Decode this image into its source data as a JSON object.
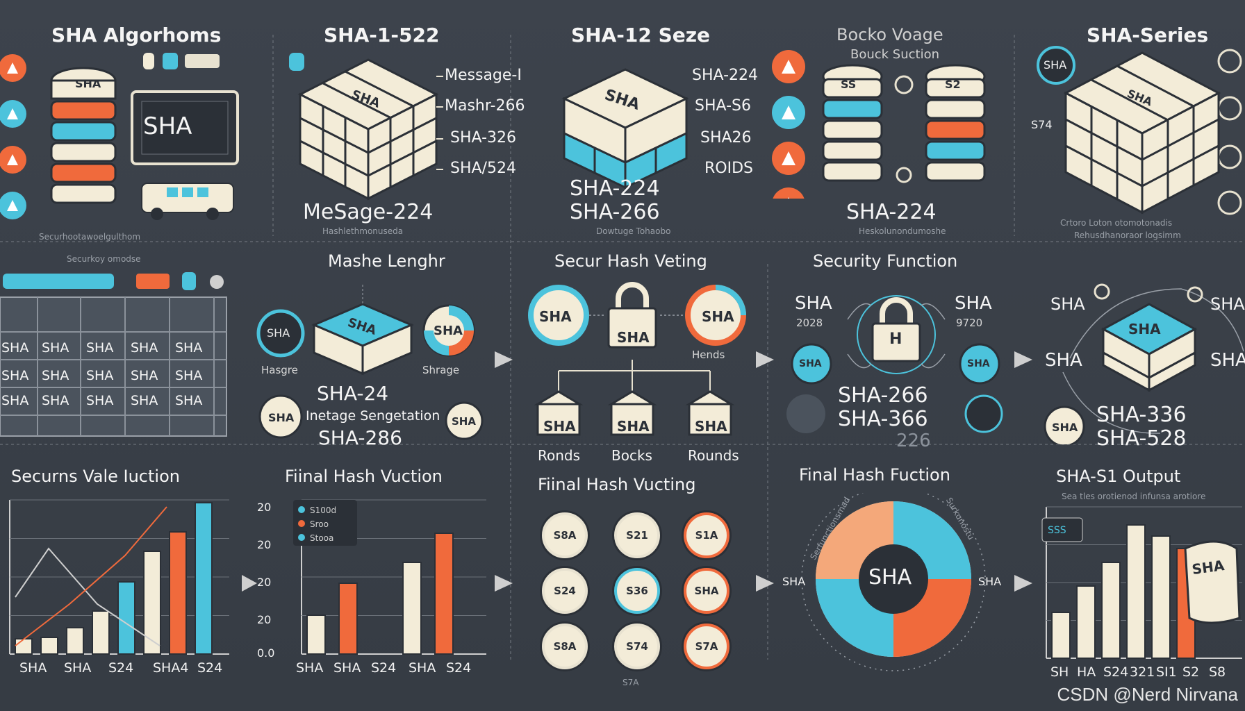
{
  "colors": {
    "bg": "#3a4049",
    "cream": "#f3ecd8",
    "teal": "#4cc3dc",
    "orange": "#f06a3c",
    "dark": "#2b3037"
  },
  "row1": {
    "p1": {
      "title": "SHA Algorhoms",
      "screen": "SHA",
      "cube": "SHA",
      "caption": "Securhootawoelgulthom"
    },
    "p2": {
      "title": "SHA-1-522",
      "labels": [
        "Message-I",
        "Mashr-266",
        "SHA-326",
        "SHA/524"
      ],
      "cube": "SHA",
      "bottom": "MeSage-224",
      "caption": "Hashlethmonuseda"
    },
    "p3": {
      "title": "SHA-12 Seze",
      "labels": [
        "SHA-224",
        "SHA-S6",
        "SHA26",
        "ROIDS"
      ],
      "cube": "SHA",
      "bottom1": "SHA-224",
      "bottom2": "SHA-266",
      "caption": "Dowtuge Tohaobo"
    },
    "p4": {
      "title": "Bocko Voage",
      "subtitle": "Bouck Suction",
      "stackLeft": "SS",
      "stackRight": "S2",
      "bottom": "SHA-224",
      "caption": "Heskolunondumoshe"
    },
    "p5": {
      "title": "SHA-Series",
      "badge": "SHA",
      "side": "S74",
      "cube": "SHA",
      "caption1": "Crtoro Loton otomotonadis",
      "caption2": "Rehusdhanoraor logsimm"
    }
  },
  "row2": {
    "p1": {
      "caption": "Securkoy omodse",
      "cells": [
        "SHA",
        "SHA",
        "SHA",
        "SHA",
        "SHA",
        "SHA",
        "SHA",
        "SHA",
        "SHA",
        "SHA",
        "SHA",
        "SHA",
        "SHA",
        "SHA",
        "SHA"
      ]
    },
    "p2": {
      "title": "Mashe Lenghr",
      "left": "SHA",
      "leftLabel": "Hasgre",
      "box": "SHA",
      "right": "SHA",
      "rightLabel": "Shrage",
      "mid1": "SHA-24",
      "mid2": "Inetage Sengetation",
      "mid3": "SHA-286",
      "bl": "SHA",
      "br": "SHA"
    },
    "p3": {
      "title": "Secur Hash Veting",
      "left": "SHA",
      "lock": "SHA",
      "right": "SHA",
      "rightLabel": "Hends",
      "boxes": [
        "SHA",
        "SHA",
        "SHA"
      ],
      "boxLabels": [
        "Ronds",
        "Bocks",
        "Rounds"
      ]
    },
    "p4": {
      "title": "Security Function",
      "l1": "SHA",
      "l2": "2028",
      "r1": "SHA",
      "r2": "9720",
      "lock": "H",
      "c1": "SHA",
      "c2": "SHA",
      "b1": "SHA-266",
      "b2": "SHA-366",
      "b3": "226"
    },
    "p5": {
      "l": "SHA",
      "r": "SHA",
      "cube": "SHA",
      "l2": "SHA",
      "r2": "SHA",
      "bl": "SHA",
      "b1": "SHA-336",
      "b2": "SHA-528"
    }
  },
  "row3": {
    "p1": {
      "title": "Securns Vale Iuction",
      "xlabels": [
        "SHA",
        "SHA",
        "S24",
        "SHA4",
        "S24"
      ]
    },
    "p2": {
      "title": "Fiinal Hash Vuction",
      "yticks": [
        "20",
        "20",
        "20",
        "20",
        "0.0"
      ],
      "legend": [
        "S100d",
        "Sroo",
        "Stooa"
      ],
      "xlabels": [
        "SHA",
        "SHA",
        "S24",
        "SHA",
        "S24"
      ]
    },
    "p3": {
      "title": "Fiinal Hash Vucting",
      "circles": [
        "S8A",
        "S21",
        "S1A",
        "S24",
        "S36",
        "SHA",
        "S8A",
        "S74",
        "S7A"
      ],
      "footer": "S7A"
    },
    "p4": {
      "title": "Final Hash Fuction",
      "center": "SHA",
      "left": "SHA",
      "right": "SHA",
      "ring1": "Serfunctionsmad",
      "ring2": "Surkunostu"
    },
    "p5": {
      "title": "SHA-S1 Output",
      "subtitle": "Sea tles orotienod infunsa arotiore",
      "badge": "SSS",
      "paper": "SHA",
      "xlabels": [
        "SH",
        "HA",
        "S24",
        "321",
        "SI1",
        "S2",
        "S8"
      ]
    }
  },
  "watermark": "CSDN @Nerd Nirvana"
}
